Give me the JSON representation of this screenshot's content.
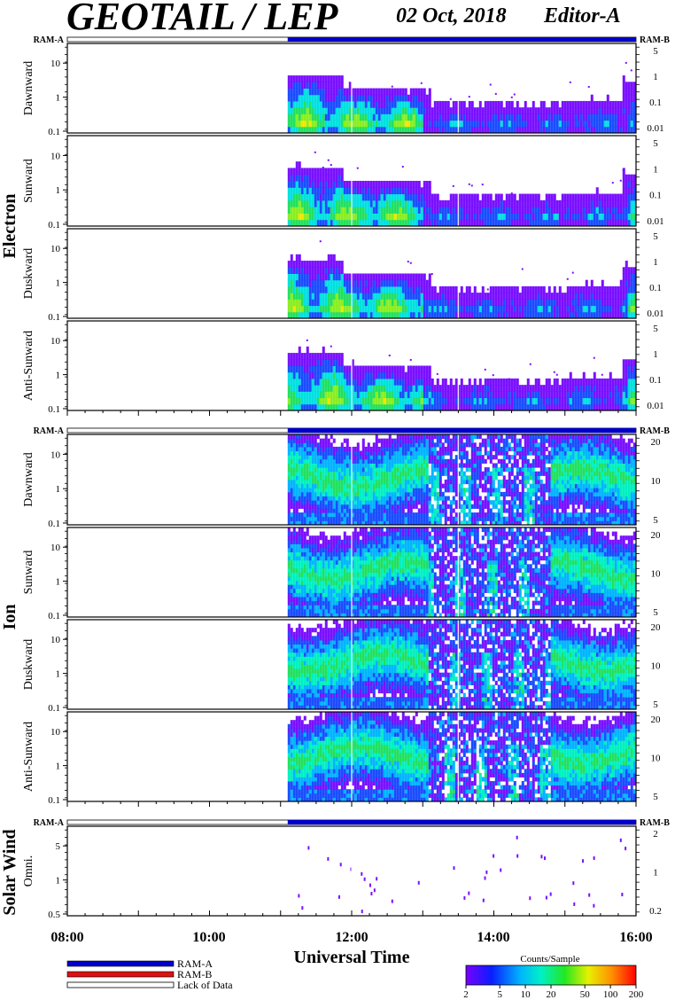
{
  "header": {
    "title": "GEOTAIL / LEP",
    "date": "02 Oct, 2018",
    "editor": "Editor-A"
  },
  "ram_bar": {
    "ram_a_label": "RAM-A",
    "ram_b_label": "RAM-B"
  },
  "colors": {
    "ram_a": "#0000cc",
    "ram_b": "#dd1111",
    "lack_of_data": "#ffffff"
  },
  "chart_data": {
    "type": "heatmap",
    "x_axis": {
      "label": "Universal Time",
      "range": [
        "08:00",
        "16:00"
      ],
      "range_hours": [
        8,
        16
      ],
      "tick_labels": [
        "08:00",
        "10:00",
        "12:00",
        "14:00",
        "16:00"
      ],
      "data_start_hours": 11.1
    },
    "groups": [
      {
        "name": "Electron",
        "right_ticks": [
          "5",
          "1",
          "0.1",
          "0.01"
        ],
        "panels": [
          {
            "name": "Dawnward",
            "y_ticks": [
              "10",
              "1",
              "0.1"
            ]
          },
          {
            "name": "Sunward",
            "y_ticks": [
              "10",
              "1",
              "0.1"
            ]
          },
          {
            "name": "Duskward",
            "y_ticks": [
              "10",
              "1",
              "0.1"
            ]
          },
          {
            "name": "Anti-Sunward",
            "y_ticks": [
              "10",
              "1",
              "0.1"
            ]
          }
        ]
      },
      {
        "name": "Ion",
        "right_ticks": [
          "20",
          "10",
          "5"
        ],
        "panels": [
          {
            "name": "Dawnward",
            "y_ticks": [
              "10",
              "1",
              "0.1"
            ]
          },
          {
            "name": "Sunward",
            "y_ticks": [
              "10",
              "1",
              "0.1"
            ]
          },
          {
            "name": "Duskward",
            "y_ticks": [
              "10",
              "1",
              "0.1"
            ]
          },
          {
            "name": "Anti-Sunward",
            "y_ticks": [
              "10",
              "1",
              "0.1"
            ]
          }
        ]
      },
      {
        "name": "Solar Wind",
        "right_ticks": [
          "2",
          "1",
          "0.2"
        ],
        "panels": [
          {
            "name": "Omni.",
            "y_ticks": [
              "5",
              "1",
              "0.5"
            ]
          }
        ]
      }
    ],
    "legend": {
      "items": [
        "RAM-A",
        "RAM-B",
        "Lack of Data"
      ]
    },
    "colorbar": {
      "title": "Counts/Sample",
      "tick_labels": [
        "2",
        "5",
        "10",
        "20",
        "50",
        "100",
        "200"
      ],
      "range": [
        2,
        200
      ],
      "scale": "log"
    }
  }
}
